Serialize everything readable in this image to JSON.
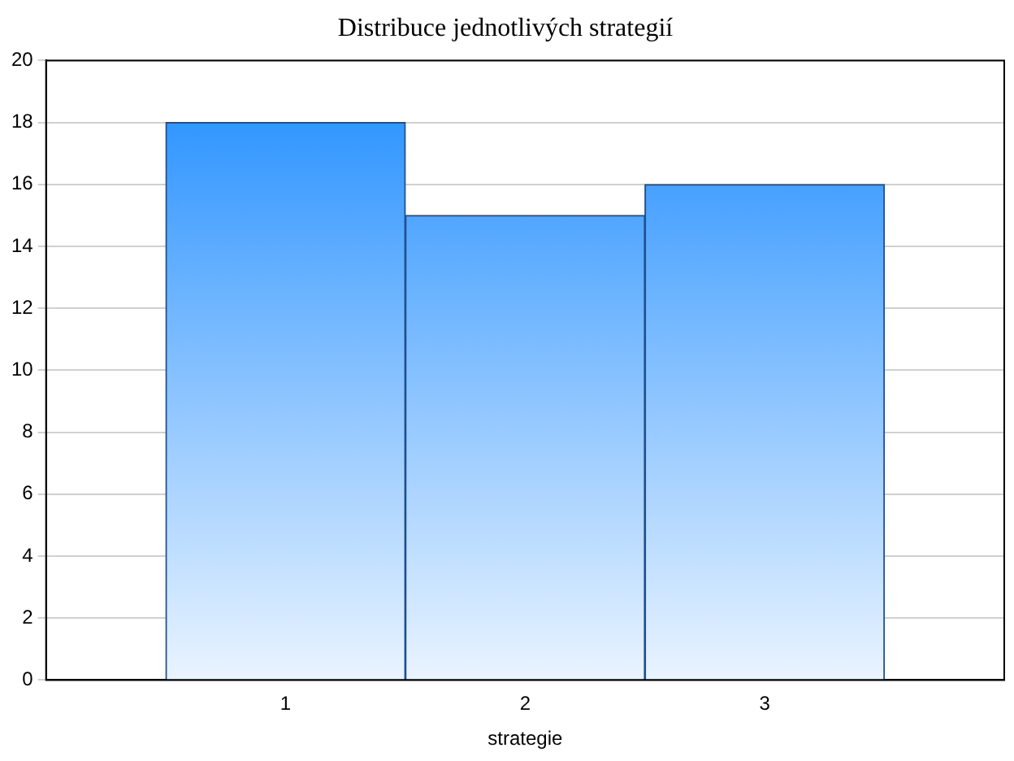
{
  "chart_data": {
    "type": "bar",
    "title": "Distribuce jednotlivých strategií",
    "xlabel": "strategie",
    "categories": [
      "1",
      "2",
      "3"
    ],
    "series": [
      {
        "color": "#1e8cff",
        "values": [
          18,
          15,
          16
        ]
      }
    ],
    "ylim": [
      0,
      20
    ],
    "yticks": [
      0,
      2,
      4,
      6,
      8,
      10,
      12,
      14,
      16,
      18,
      20
    ],
    "grid": "y",
    "legend": false
  }
}
